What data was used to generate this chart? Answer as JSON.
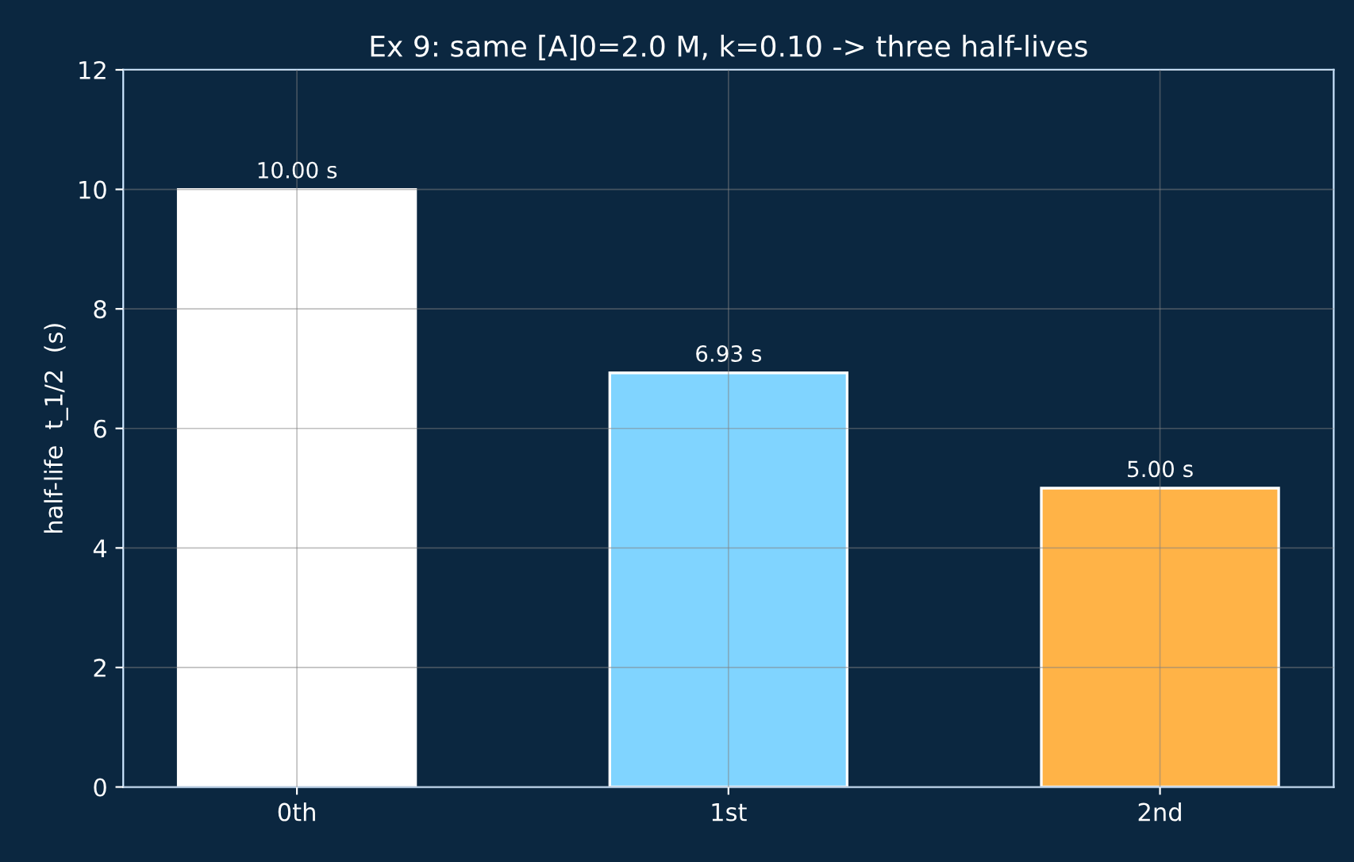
{
  "chart_data": {
    "type": "bar",
    "title": "Ex 9: same [A]0=2.0 M, k=0.10 -> three half-lives",
    "ylabel": "half-life  t_1/2  (s)",
    "categories": [
      "0th",
      "1st",
      "2nd"
    ],
    "values": [
      10.0,
      6.93,
      5.0
    ],
    "colors": [
      "#ffffff",
      "#80d4ff",
      "#ffb347"
    ],
    "value_labels": [
      "10.00 s",
      "6.93 s",
      "5.00 s"
    ],
    "ylim": [
      0,
      12
    ],
    "yticks": [
      0,
      2,
      4,
      6,
      8,
      10,
      12
    ],
    "grid": true
  }
}
